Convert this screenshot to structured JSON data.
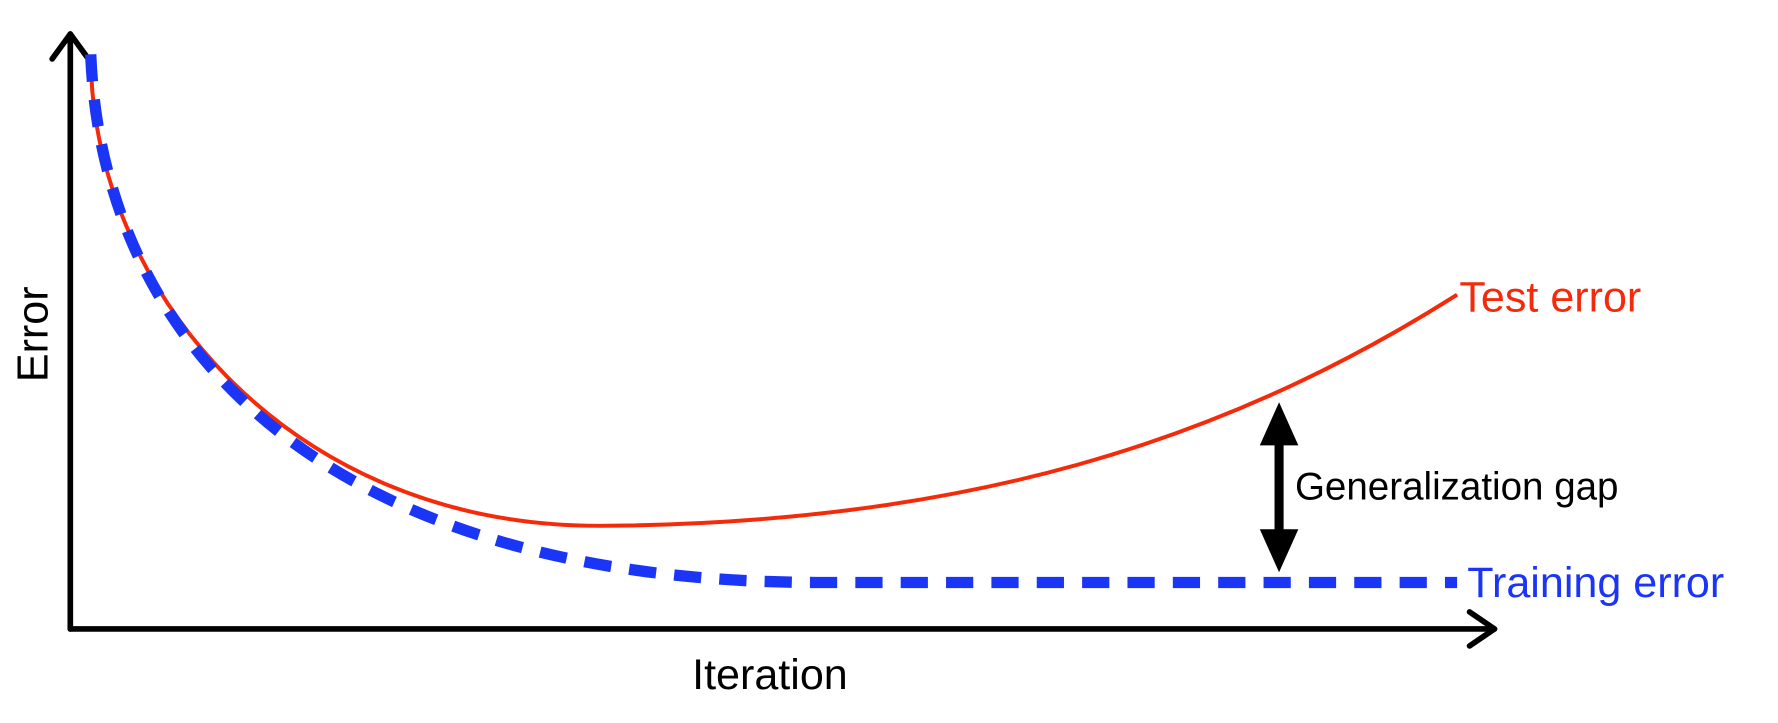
{
  "axes": {
    "x_label": "Iteration",
    "y_label": "Error"
  },
  "curves": [
    {
      "label": "Test error"
    },
    {
      "label": "Training error"
    }
  ],
  "annotation": "Generalization gap"
}
